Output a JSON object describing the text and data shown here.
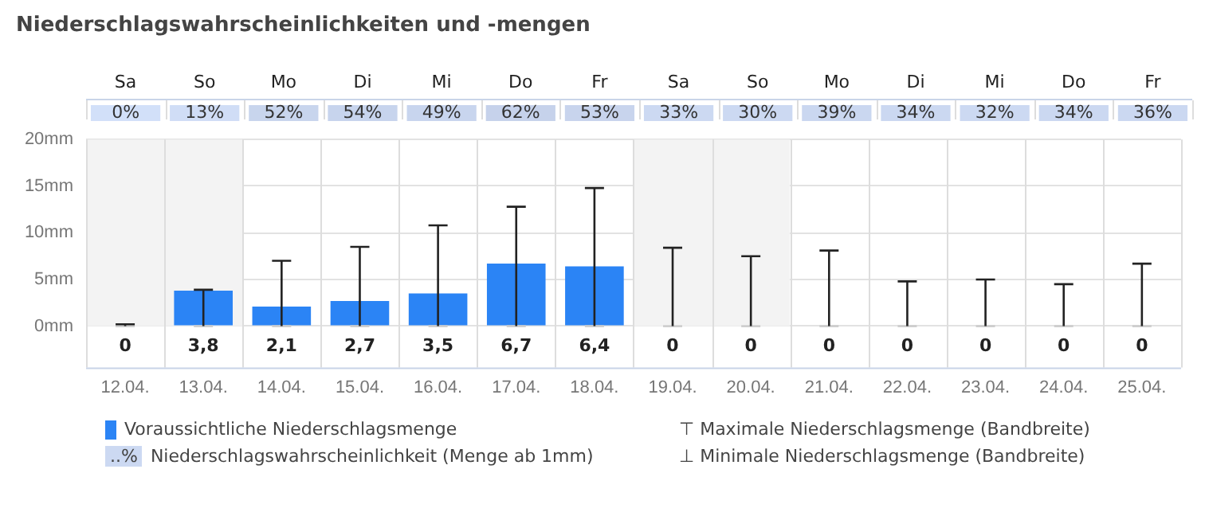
{
  "chart_data": [
    {
      "type": "heatmap",
      "title": "Niederschlagswahrscheinlichkeiten und -mengen",
      "categories": [
        "Sa",
        "So",
        "Mo",
        "Di",
        "Mi",
        "Do",
        "Fr",
        "Sa",
        "So",
        "Mo",
        "Di",
        "Mi",
        "Do",
        "Fr"
      ],
      "y_categories": [
        null
      ],
      "cells": [
        [
          0,
          13,
          52,
          54,
          49,
          62,
          53,
          33,
          30,
          39,
          34,
          32,
          34,
          36
        ]
      ],
      "cell_labels": [
        [
          "0%",
          "13%",
          "52%",
          "54%",
          "49%",
          "62%",
          "53%",
          "33%",
          "30%",
          "39%",
          "34%",
          "32%",
          "34%",
          "36%"
        ]
      ],
      "color": "#ccd9f2",
      "annotations": [
        "..%",
        "Niederschlagswahrscheinlichkeit (Menge ab 1mm)"
      ]
    },
    {
      "type": "bar",
      "categories": [
        "12.04.",
        "13.04.",
        "14.04.",
        "15.04.",
        "16.04.",
        "17.04.",
        "18.04.",
        "19.04.",
        "20.04.",
        "21.04.",
        "22.04.",
        "23.04.",
        "24.04.",
        "25.04."
      ],
      "series": [
        {
          "name": "Voraussichtliche Niederschlagsmenge",
          "color": "#2b84f5",
          "values": [
            0,
            3.8,
            2.1,
            2.7,
            3.5,
            6.7,
            6.4,
            0,
            0,
            0,
            0,
            0,
            0,
            0
          ],
          "value_labels": [
            "0",
            "3,8",
            "2,1",
            "2,7",
            "3,5",
            "6,7",
            "6,4",
            "0",
            "0",
            "0",
            "0",
            "0",
            "0",
            "0"
          ],
          "errors": [
            [
              0,
              0.2
            ],
            [
              0,
              3.9
            ],
            [
              0,
              7
            ],
            [
              0,
              8.5
            ],
            [
              0,
              10.8
            ],
            [
              0,
              12.8
            ],
            [
              0,
              14.8
            ],
            [
              0,
              8.4
            ],
            [
              0,
              7.5
            ],
            [
              0,
              8.1
            ],
            [
              0,
              4.8
            ],
            [
              0,
              5
            ],
            [
              0,
              4.5
            ],
            [
              0,
              6.7
            ]
          ]
        }
      ],
      "ylim": [
        0,
        20
      ],
      "yticks": [
        {
          "value": 0,
          "label": "0mm"
        },
        {
          "value": 5,
          "label": "5mm"
        },
        {
          "value": 10,
          "label": "10mm"
        },
        {
          "value": 15,
          "label": "15mm"
        },
        {
          "value": 20,
          "label": "20mm"
        }
      ],
      "bands": [
        {
          "axis": "x",
          "from": "12.04.",
          "to": "13.04.",
          "color": "#f3f3f3"
        },
        {
          "axis": "x",
          "from": "19.04.",
          "to": "20.04.",
          "color": "#f3f3f3"
        }
      ],
      "annotations": [
        "⊤ Maximale Niederschlagsmenge (Bandbreite)",
        "⊥ Minimale Niederschlagsmenge (Bandbreite)"
      ],
      "grid": true,
      "legend": "bottom"
    }
  ]
}
